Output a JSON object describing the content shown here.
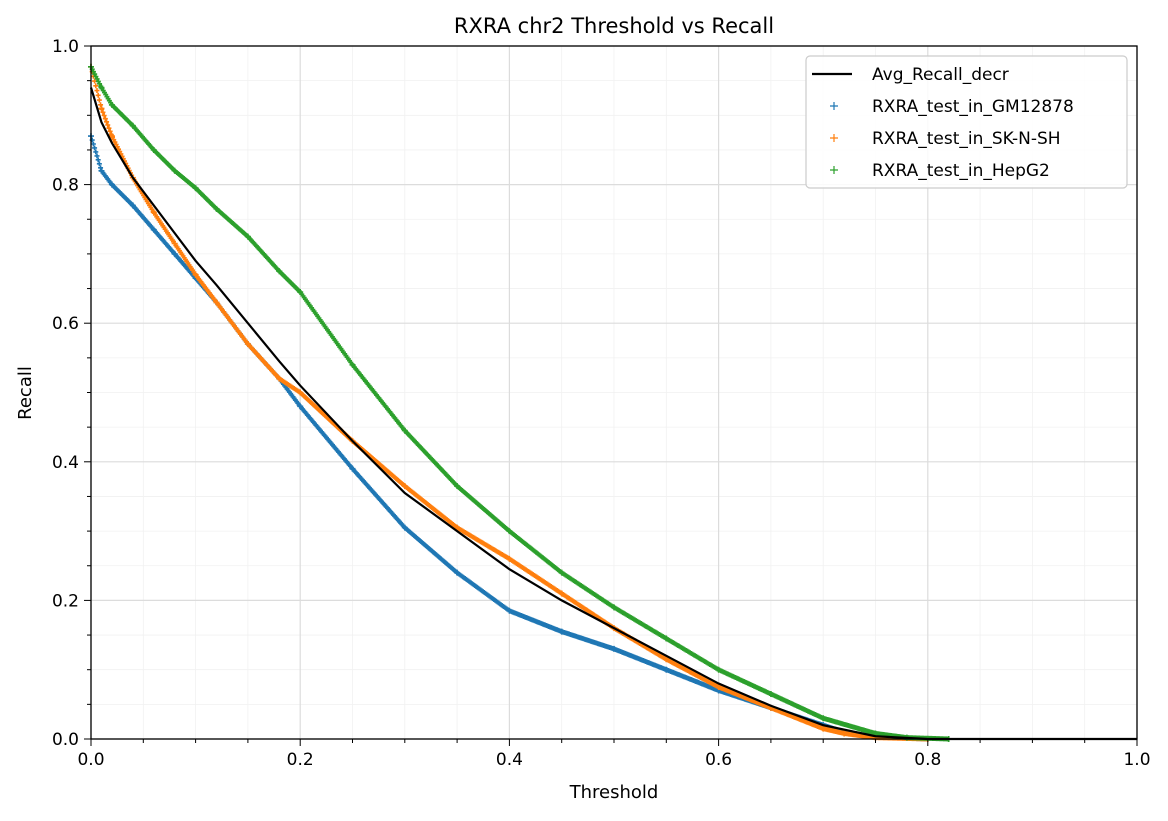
{
  "chart_data": {
    "type": "scatter",
    "title": "RXRA chr2 Threshold vs Recall",
    "xlabel": "Threshold",
    "ylabel": "Recall",
    "xlim": [
      0.0,
      1.0
    ],
    "ylim": [
      0.0,
      1.0
    ],
    "x_ticks": [
      "0.0",
      "0.2",
      "0.4",
      "0.6",
      "0.8",
      "1.0"
    ],
    "y_ticks": [
      "0.0",
      "0.2",
      "0.4",
      "0.6",
      "0.8",
      "1.0"
    ],
    "grid": true,
    "minor_grid": true,
    "legend_position": "top-right",
    "legend": [
      "Avg_Recall_decr",
      "RXRA_test_in_GM12878",
      "RXRA_test_in_SK-N-SH",
      "RXRA_test_in_HepG2"
    ],
    "series": [
      {
        "name": "Avg_Recall_decr",
        "kind": "line",
        "color": "#000000",
        "x": [
          0.0,
          0.01,
          0.02,
          0.04,
          0.06,
          0.08,
          0.1,
          0.12,
          0.15,
          0.18,
          0.2,
          0.25,
          0.3,
          0.35,
          0.4,
          0.45,
          0.5,
          0.55,
          0.6,
          0.65,
          0.7,
          0.75,
          0.8,
          0.9,
          1.0
        ],
        "y": [
          0.94,
          0.89,
          0.86,
          0.81,
          0.77,
          0.73,
          0.69,
          0.655,
          0.6,
          0.545,
          0.51,
          0.43,
          0.355,
          0.3,
          0.245,
          0.2,
          0.16,
          0.12,
          0.08,
          0.048,
          0.02,
          0.004,
          0.0,
          0.0,
          0.0
        ]
      },
      {
        "name": "RXRA_test_in_GM12878",
        "kind": "scatter",
        "marker": "+",
        "color": "#1f77b4",
        "x": [
          0.0,
          0.01,
          0.02,
          0.04,
          0.06,
          0.08,
          0.1,
          0.12,
          0.15,
          0.18,
          0.2,
          0.25,
          0.3,
          0.35,
          0.4,
          0.45,
          0.5,
          0.55,
          0.6,
          0.65,
          0.7,
          0.72,
          0.75,
          0.8
        ],
        "y": [
          0.87,
          0.82,
          0.8,
          0.77,
          0.735,
          0.7,
          0.665,
          0.63,
          0.57,
          0.52,
          0.48,
          0.39,
          0.305,
          0.24,
          0.185,
          0.155,
          0.13,
          0.1,
          0.07,
          0.045,
          0.02,
          0.01,
          0.003,
          0.0
        ]
      },
      {
        "name": "RXRA_test_in_SK-N-SH",
        "kind": "scatter",
        "marker": "+",
        "color": "#ff7f0e",
        "x": [
          0.0,
          0.01,
          0.02,
          0.04,
          0.06,
          0.08,
          0.1,
          0.12,
          0.15,
          0.18,
          0.2,
          0.25,
          0.3,
          0.35,
          0.4,
          0.45,
          0.5,
          0.55,
          0.6,
          0.65,
          0.7,
          0.72,
          0.75,
          0.8
        ],
        "y": [
          0.97,
          0.91,
          0.87,
          0.81,
          0.76,
          0.715,
          0.67,
          0.63,
          0.57,
          0.52,
          0.5,
          0.43,
          0.365,
          0.305,
          0.26,
          0.21,
          0.16,
          0.115,
          0.075,
          0.045,
          0.015,
          0.008,
          0.002,
          0.0
        ]
      },
      {
        "name": "RXRA_test_in_HepG2",
        "kind": "scatter",
        "marker": "+",
        "color": "#2ca02c",
        "x": [
          0.0,
          0.01,
          0.02,
          0.04,
          0.06,
          0.08,
          0.1,
          0.12,
          0.15,
          0.18,
          0.2,
          0.25,
          0.3,
          0.35,
          0.4,
          0.45,
          0.5,
          0.55,
          0.6,
          0.65,
          0.7,
          0.75,
          0.78,
          0.82
        ],
        "y": [
          0.97,
          0.94,
          0.915,
          0.885,
          0.85,
          0.82,
          0.795,
          0.765,
          0.725,
          0.675,
          0.645,
          0.54,
          0.445,
          0.365,
          0.3,
          0.24,
          0.19,
          0.145,
          0.1,
          0.065,
          0.03,
          0.008,
          0.002,
          0.0
        ]
      }
    ]
  }
}
